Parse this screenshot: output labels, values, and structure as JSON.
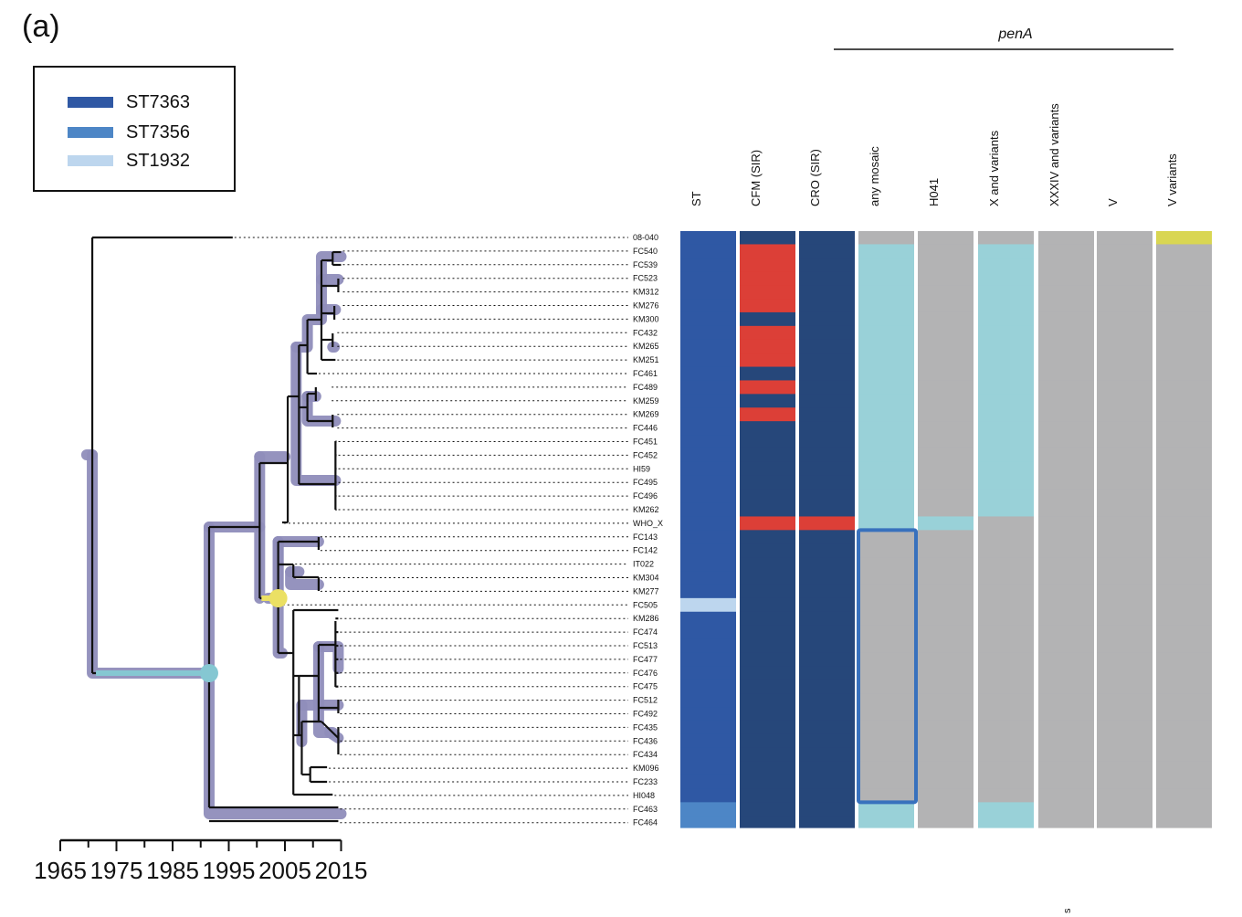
{
  "panel_label": "(a)",
  "legend": [
    {
      "name": "ST7363",
      "color": "#2f58a4"
    },
    {
      "name": "ST7356",
      "color": "#4d86c6"
    },
    {
      "name": "ST1932",
      "color": "#bdd6ee"
    }
  ],
  "group_header": "penA",
  "columns": [
    "ST",
    "CFM (SIR)",
    "CRO (SIR)",
    "any mosaic",
    "H041",
    "X and variants",
    "XXXIV and variants",
    "V",
    "V variants"
  ],
  "colors": {
    "st7363": "#2f58a4",
    "st7356": "#4d86c6",
    "st1932": "#bdd6ee",
    "susceptible": "#26477a",
    "resistant": "#dc3f37",
    "gray": "#b3b3b4",
    "cyan": "#99d1d8",
    "yellow": "#d9d652",
    "highlight_branch": "#8f8dbb",
    "highlight_box": "#3871bd",
    "node_cyan": "#85c7d2",
    "node_yellow": "#ebe064"
  },
  "axis": {
    "ticks": [
      1965,
      1975,
      1985,
      1995,
      2005,
      2015
    ]
  },
  "tips": [
    "08-040",
    "FC540",
    "FC539",
    "FC523",
    "KM312",
    "KM276",
    "KM300",
    "FC432",
    "KM265",
    "KM251",
    "FC461",
    "FC489",
    "KM259",
    "KM269",
    "FC446",
    "FC451",
    "FC452",
    "HI59",
    "FC495",
    "FC496",
    "KM262",
    "WHO_X",
    "FC143",
    "FC142",
    "IT022",
    "KM304",
    "KM277",
    "FC505",
    "KM286",
    "FC474",
    "FC513",
    "FC477",
    "FC476",
    "FC475",
    "FC512",
    "FC492",
    "FC435",
    "FC436",
    "FC434",
    "KM096",
    "FC233",
    "HI048",
    "FC463",
    "FC464"
  ],
  "tip_years": [
    1995.7,
    2015,
    2015,
    2015,
    2015,
    2015,
    2015,
    2014,
    2014,
    2014,
    2010.7,
    2013,
    2013,
    2014,
    2014,
    2014.2,
    2014.2,
    2014.2,
    2014.2,
    2014.2,
    2014.2,
    2004.5,
    2011,
    2011,
    2006.5,
    2011,
    2011,
    2003.5,
    2014.5,
    2014.5,
    2014.5,
    2014.5,
    2014.5,
    2014.5,
    2014.5,
    2014.5,
    2014.5,
    2014.5,
    2014.5,
    2012.5,
    2012.5,
    2013.5,
    2014.5,
    2014.5
  ],
  "heatmap": {
    "ST": [
      "st7363",
      "st7363",
      "st7363",
      "st7363",
      "st7363",
      "st7363",
      "st7363",
      "st7363",
      "st7363",
      "st7363",
      "st7363",
      "st7363",
      "st7363",
      "st7363",
      "st7363",
      "st7363",
      "st7363",
      "st7363",
      "st7363",
      "st7363",
      "st7363",
      "st7363",
      "st7363",
      "st7363",
      "st7363",
      "st7363",
      "st7363",
      "st1932",
      "st7363",
      "st7363",
      "st7363",
      "st7363",
      "st7363",
      "st7363",
      "st7363",
      "st7363",
      "st7363",
      "st7363",
      "st7363",
      "st7363",
      "st7363",
      "st7363",
      "st7356",
      "st7356"
    ],
    "CFM (SIR)": [
      "susceptible",
      "resistant",
      "resistant",
      "resistant",
      "resistant",
      "resistant",
      "susceptible",
      "resistant",
      "resistant",
      "resistant",
      "susceptible",
      "resistant",
      "susceptible",
      "resistant",
      "susceptible",
      "susceptible",
      "susceptible",
      "susceptible",
      "susceptible",
      "susceptible",
      "susceptible",
      "resistant",
      "susceptible",
      "susceptible",
      "susceptible",
      "susceptible",
      "susceptible",
      "susceptible",
      "susceptible",
      "susceptible",
      "susceptible",
      "susceptible",
      "susceptible",
      "susceptible",
      "susceptible",
      "susceptible",
      "susceptible",
      "susceptible",
      "susceptible",
      "susceptible",
      "susceptible",
      "susceptible",
      "susceptible",
      "susceptible"
    ],
    "CRO (SIR)": [
      "susceptible",
      "susceptible",
      "susceptible",
      "susceptible",
      "susceptible",
      "susceptible",
      "susceptible",
      "susceptible",
      "susceptible",
      "susceptible",
      "susceptible",
      "susceptible",
      "susceptible",
      "susceptible",
      "susceptible",
      "susceptible",
      "susceptible",
      "susceptible",
      "susceptible",
      "susceptible",
      "susceptible",
      "resistant",
      "susceptible",
      "susceptible",
      "susceptible",
      "susceptible",
      "susceptible",
      "susceptible",
      "susceptible",
      "susceptible",
      "susceptible",
      "susceptible",
      "susceptible",
      "susceptible",
      "susceptible",
      "susceptible",
      "susceptible",
      "susceptible",
      "susceptible",
      "susceptible",
      "susceptible",
      "susceptible",
      "susceptible",
      "susceptible"
    ],
    "any mosaic": [
      "gray",
      "cyan",
      "cyan",
      "cyan",
      "cyan",
      "cyan",
      "cyan",
      "cyan",
      "cyan",
      "cyan",
      "cyan",
      "cyan",
      "cyan",
      "cyan",
      "cyan",
      "cyan",
      "cyan",
      "cyan",
      "cyan",
      "cyan",
      "cyan",
      "cyan",
      "gray",
      "gray",
      "gray",
      "gray",
      "gray",
      "gray",
      "gray",
      "gray",
      "gray",
      "gray",
      "gray",
      "gray",
      "gray",
      "gray",
      "gray",
      "gray",
      "gray",
      "gray",
      "gray",
      "gray",
      "cyan",
      "cyan"
    ],
    "H041": [
      "gray",
      "gray",
      "gray",
      "gray",
      "gray",
      "gray",
      "gray",
      "gray",
      "gray",
      "gray",
      "gray",
      "gray",
      "gray",
      "gray",
      "gray",
      "gray",
      "gray",
      "gray",
      "gray",
      "gray",
      "gray",
      "cyan",
      "gray",
      "gray",
      "gray",
      "gray",
      "gray",
      "gray",
      "gray",
      "gray",
      "gray",
      "gray",
      "gray",
      "gray",
      "gray",
      "gray",
      "gray",
      "gray",
      "gray",
      "gray",
      "gray",
      "gray",
      "gray",
      "gray"
    ],
    "X and variants": [
      "gray",
      "cyan",
      "cyan",
      "cyan",
      "cyan",
      "cyan",
      "cyan",
      "cyan",
      "cyan",
      "cyan",
      "cyan",
      "cyan",
      "cyan",
      "cyan",
      "cyan",
      "cyan",
      "cyan",
      "cyan",
      "cyan",
      "cyan",
      "cyan",
      "gray",
      "gray",
      "gray",
      "gray",
      "gray",
      "gray",
      "gray",
      "gray",
      "gray",
      "gray",
      "gray",
      "gray",
      "gray",
      "gray",
      "gray",
      "gray",
      "gray",
      "gray",
      "gray",
      "gray",
      "gray",
      "cyan",
      "cyan"
    ],
    "XXXIV and variants": [
      "gray",
      "gray",
      "gray",
      "gray",
      "gray",
      "gray",
      "gray",
      "gray",
      "gray",
      "gray",
      "gray",
      "gray",
      "gray",
      "gray",
      "gray",
      "gray",
      "gray",
      "gray",
      "gray",
      "gray",
      "gray",
      "gray",
      "gray",
      "gray",
      "gray",
      "gray",
      "gray",
      "gray",
      "gray",
      "gray",
      "gray",
      "gray",
      "gray",
      "gray",
      "gray",
      "gray",
      "gray",
      "gray",
      "gray",
      "gray",
      "gray",
      "gray",
      "gray",
      "gray"
    ],
    "V": [
      "gray",
      "gray",
      "gray",
      "gray",
      "gray",
      "gray",
      "gray",
      "gray",
      "gray",
      "gray",
      "gray",
      "gray",
      "gray",
      "gray",
      "gray",
      "gray",
      "gray",
      "gray",
      "gray",
      "gray",
      "gray",
      "gray",
      "gray",
      "gray",
      "gray",
      "gray",
      "gray",
      "gray",
      "gray",
      "gray",
      "gray",
      "gray",
      "gray",
      "gray",
      "gray",
      "gray",
      "gray",
      "gray",
      "gray",
      "gray",
      "gray",
      "gray",
      "gray",
      "gray"
    ],
    "V variants": [
      "yellow",
      "gray",
      "gray",
      "gray",
      "gray",
      "gray",
      "gray",
      "gray",
      "gray",
      "gray",
      "gray",
      "gray",
      "gray",
      "gray",
      "gray",
      "gray",
      "gray",
      "gray",
      "gray",
      "gray",
      "gray",
      "gray",
      "gray",
      "gray",
      "gray",
      "gray",
      "gray",
      "gray",
      "gray",
      "gray",
      "gray",
      "gray",
      "gray",
      "gray",
      "gray",
      "gray",
      "gray",
      "gray",
      "gray",
      "gray",
      "gray",
      "gray",
      "gray",
      "gray"
    ]
  },
  "footnote": "s"
}
